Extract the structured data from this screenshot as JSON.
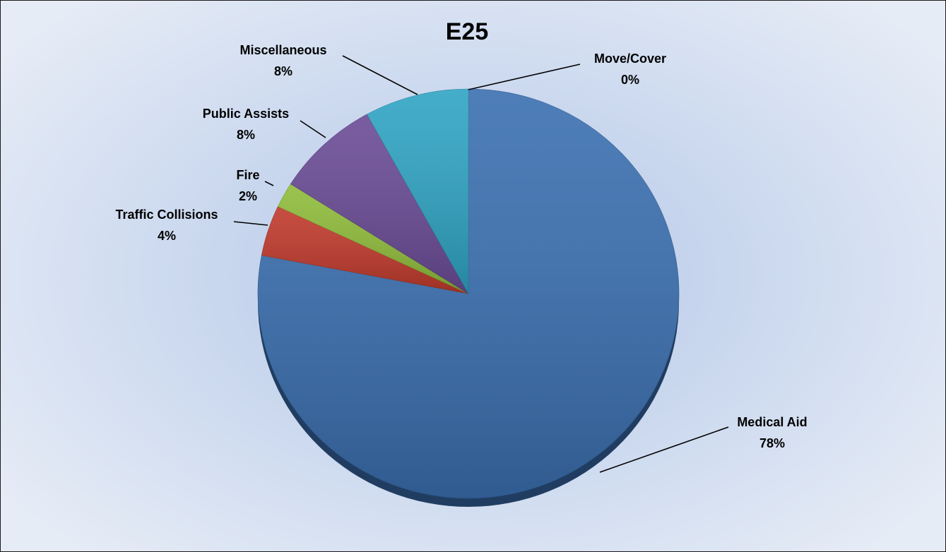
{
  "chart_data": {
    "type": "pie",
    "title": "E25",
    "slices": [
      {
        "label": "Medical Aid",
        "value": 78,
        "value_label": "78%",
        "color": "#3a6fb0"
      },
      {
        "label": "Traffic Collisions",
        "value": 4,
        "value_label": "4%",
        "color": "#c0392b"
      },
      {
        "label": "Fire",
        "value": 2,
        "value_label": "2%",
        "color": "#8fbc3a"
      },
      {
        "label": "Public Assists",
        "value": 8,
        "value_label": "8%",
        "color": "#6a4b96"
      },
      {
        "label": "Miscellaneous",
        "value": 8,
        "value_label": "8%",
        "color": "#2fa4c4"
      },
      {
        "label": "Move/Cover",
        "value": 0,
        "value_label": "0%",
        "color": "#e08a2e"
      }
    ],
    "start": "12 o'clock",
    "direction": "clockwise",
    "legend": "none (data labels with leader lines)",
    "style": "3D pie, radial gradient background"
  }
}
